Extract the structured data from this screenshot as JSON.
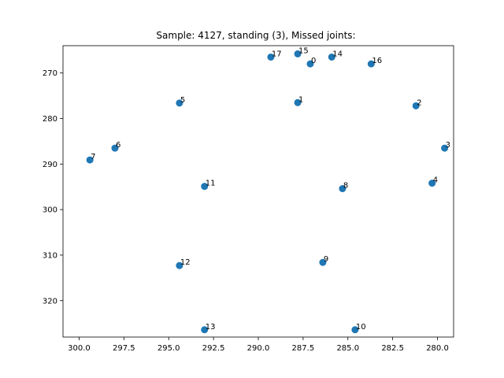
{
  "chart_data": {
    "type": "scatter",
    "title": "Sample: 4127, standing (3), Missed joints:",
    "xlabel": "",
    "ylabel": "",
    "xlim": [
      300.9,
      279.1
    ],
    "ylim": [
      328.0,
      264.0
    ],
    "x_inverted": true,
    "y_inverted": true,
    "xticks": [
      300.0,
      297.5,
      295.0,
      292.5,
      290.0,
      287.5,
      285.0,
      282.5,
      280.0
    ],
    "xtick_labels": [
      "300.0",
      "297.5",
      "295.0",
      "292.5",
      "290.0",
      "287.5",
      "285.0",
      "282.5",
      "280.0"
    ],
    "yticks": [
      270,
      280,
      290,
      300,
      310,
      320
    ],
    "ytick_labels": [
      "270",
      "280",
      "290",
      "300",
      "310",
      "320"
    ],
    "marker_color": "#1f77b4",
    "points": [
      {
        "label": "0",
        "x": 287.1,
        "y": 268.0
      },
      {
        "label": "1",
        "x": 287.8,
        "y": 276.5
      },
      {
        "label": "2",
        "x": 281.2,
        "y": 277.2
      },
      {
        "label": "3",
        "x": 279.6,
        "y": 286.5
      },
      {
        "label": "4",
        "x": 280.3,
        "y": 294.2
      },
      {
        "label": "5",
        "x": 294.4,
        "y": 276.6
      },
      {
        "label": "6",
        "x": 298.0,
        "y": 286.5
      },
      {
        "label": "7",
        "x": 299.4,
        "y": 289.1
      },
      {
        "label": "8",
        "x": 285.3,
        "y": 295.4
      },
      {
        "label": "9",
        "x": 286.4,
        "y": 311.6
      },
      {
        "label": "10",
        "x": 284.6,
        "y": 326.4
      },
      {
        "label": "11",
        "x": 293.0,
        "y": 294.9
      },
      {
        "label": "12",
        "x": 294.4,
        "y": 312.3
      },
      {
        "label": "13",
        "x": 293.0,
        "y": 326.4
      },
      {
        "label": "14",
        "x": 285.9,
        "y": 266.5
      },
      {
        "label": "15",
        "x": 287.8,
        "y": 265.8
      },
      {
        "label": "16",
        "x": 283.7,
        "y": 268.0
      },
      {
        "label": "17",
        "x": 289.3,
        "y": 266.5
      }
    ]
  }
}
